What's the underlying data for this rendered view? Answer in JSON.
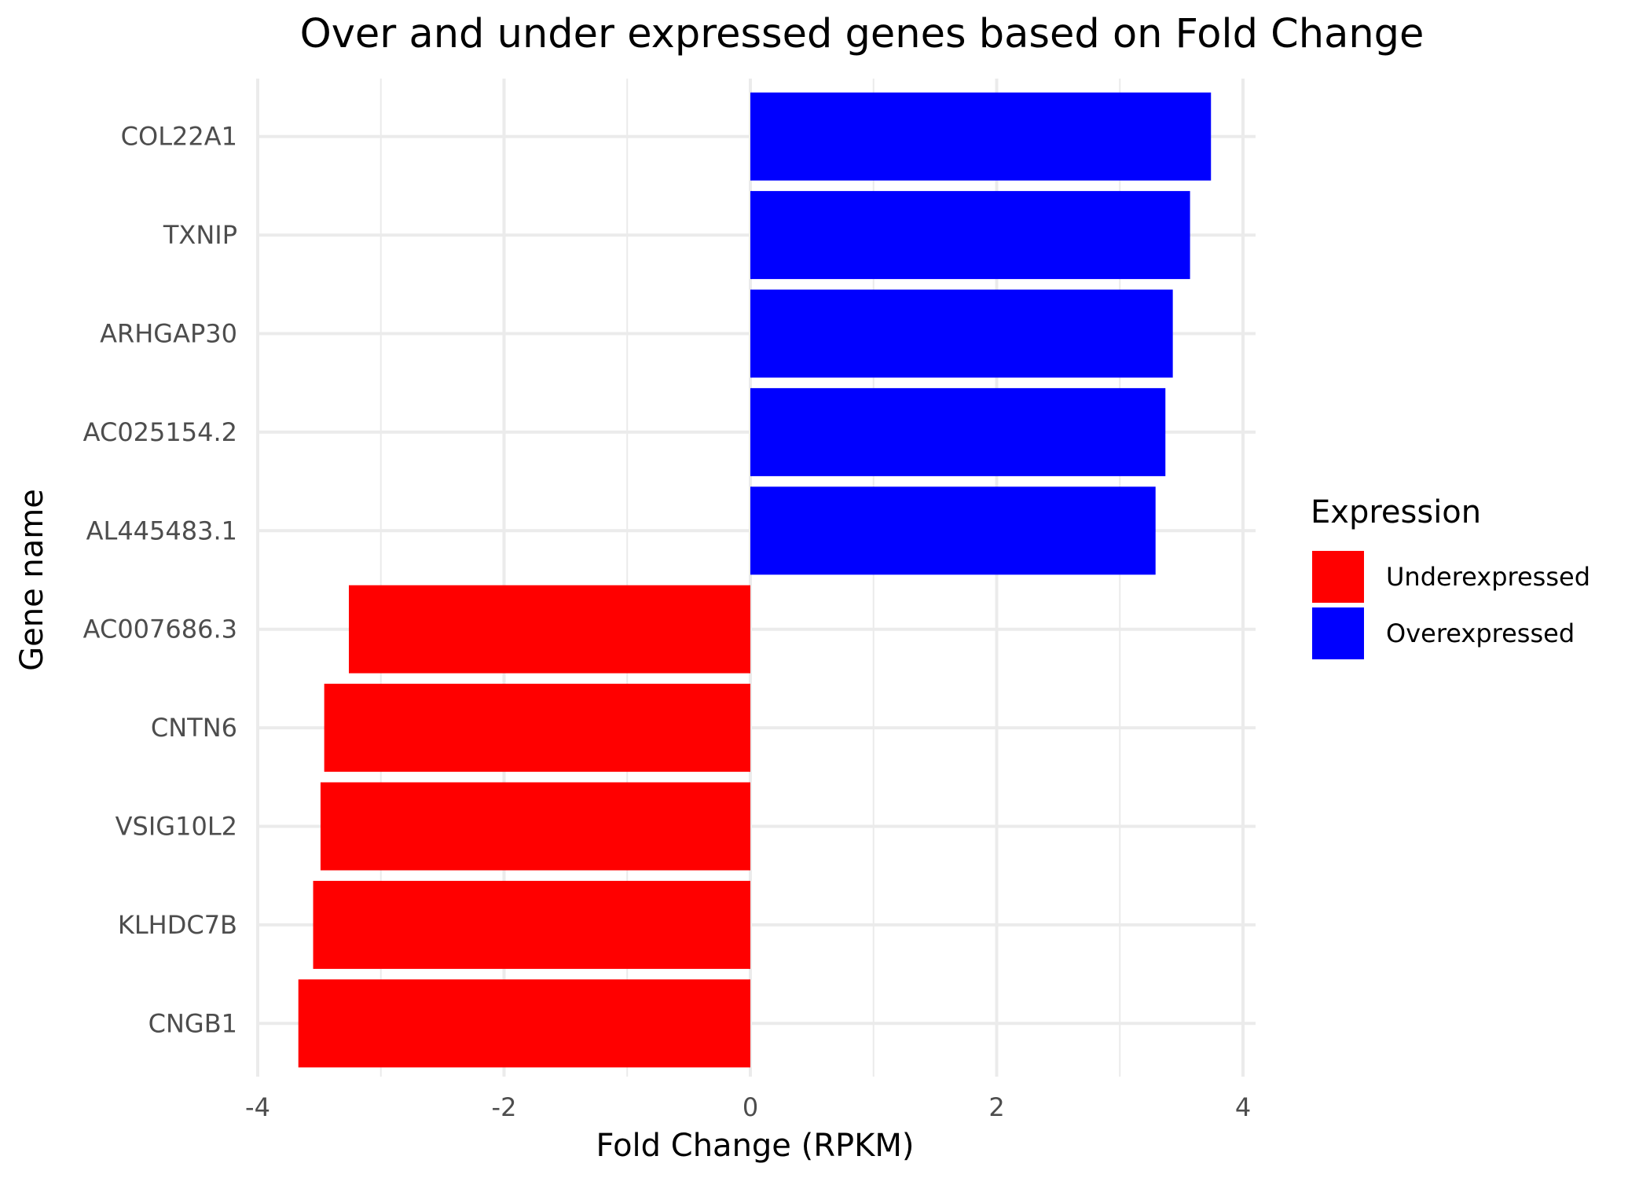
{
  "chart_data": {
    "type": "bar",
    "orientation": "horizontal",
    "title": "Over and under expressed genes based on Fold Change",
    "xlabel": "Fold Change (RPKM)",
    "ylabel": "Gene name",
    "xlim": [
      -4,
      4
    ],
    "xticks": [
      -4,
      -2,
      0,
      2,
      4
    ],
    "x_minor_ticks": [
      -3,
      -1,
      1,
      3
    ],
    "grid": true,
    "categories": [
      "COL22A1",
      "TXNIP",
      "ARHGAP30",
      "AC025154.2",
      "AL445483.1",
      "AC007686.3",
      "CNTN6",
      "VSIG10L2",
      "KLHDC7B",
      "CNGB1"
    ],
    "values": [
      3.74,
      3.57,
      3.43,
      3.37,
      3.29,
      -3.26,
      -3.46,
      -3.49,
      -3.55,
      -3.67
    ],
    "groups": [
      "Overexpressed",
      "Overexpressed",
      "Overexpressed",
      "Overexpressed",
      "Overexpressed",
      "Underexpressed",
      "Underexpressed",
      "Underexpressed",
      "Underexpressed",
      "Underexpressed"
    ],
    "legend": {
      "title": "Expression",
      "position": "right",
      "entries": [
        {
          "label": "Underexpressed",
          "color": "#ff0000"
        },
        {
          "label": "Overexpressed",
          "color": "#0000ff"
        }
      ]
    }
  }
}
